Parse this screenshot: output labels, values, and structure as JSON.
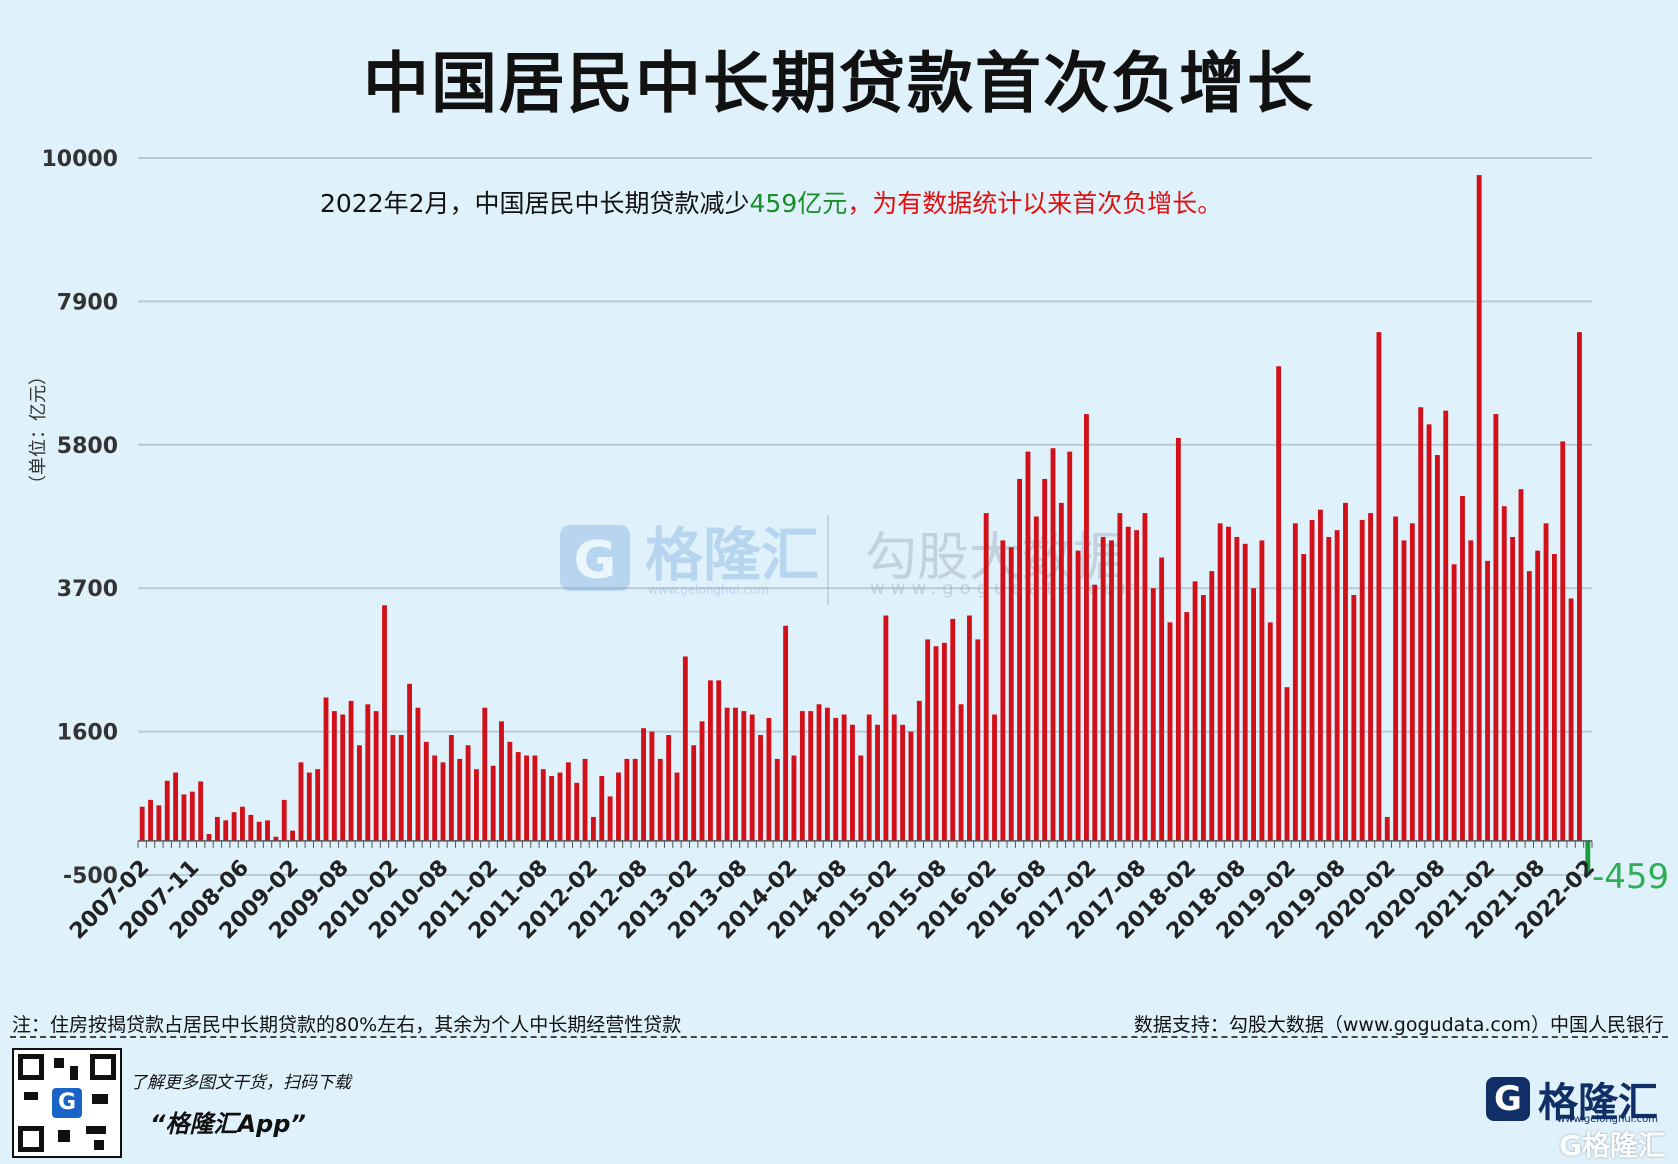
{
  "title": "中国居民中长期贷款首次负增长",
  "chart_data": {
    "type": "bar",
    "ylabel": "（单位：亿元）",
    "yticks": [
      -500,
      1600,
      3700,
      5800,
      7900,
      10000
    ],
    "ylim": [
      -500,
      10000
    ],
    "bar_color": "#d1101a",
    "negative_color": "#1a9c3c",
    "xtick_labels": [
      "2007-02",
      "2007-11",
      "2008-06",
      "2009-02",
      "2009-08",
      "2010-02",
      "2010-08",
      "2011-02",
      "2011-08",
      "2012-02",
      "2012-08",
      "2013-02",
      "2013-08",
      "2014-02",
      "2014-08",
      "2015-02",
      "2015-08",
      "2016-02",
      "2016-08",
      "2017-02",
      "2017-08",
      "2018-02",
      "2018-08",
      "2019-02",
      "2019-08",
      "2020-02",
      "2020-08",
      "2021-02",
      "2021-08",
      "2022-02"
    ],
    "annotation": {
      "part1": "2022年2月，中国居民中长期贷款减少",
      "part2": "459亿元",
      "part3": "，为有数据统计以来首次负增长。"
    },
    "last_value_label": "-459",
    "values": [
      500,
      600,
      520,
      880,
      1000,
      680,
      720,
      870,
      100,
      350,
      300,
      420,
      500,
      380,
      280,
      300,
      60,
      600,
      150,
      1150,
      1000,
      1050,
      2100,
      1900,
      1850,
      2050,
      1400,
      2000,
      1900,
      3450,
      1550,
      1550,
      2300,
      1950,
      1450,
      1250,
      1150,
      1550,
      1200,
      1400,
      1050,
      1950,
      1100,
      1750,
      1450,
      1300,
      1250,
      1250,
      1050,
      950,
      1000,
      1150,
      850,
      1200,
      350,
      950,
      650,
      1000,
      1200,
      1200,
      1650,
      1600,
      1200,
      1550,
      1000,
      2700,
      1400,
      1750,
      2350,
      2350,
      1950,
      1950,
      1900,
      1850,
      1550,
      1800,
      1200,
      3150,
      1250,
      1900,
      1900,
      2000,
      1950,
      1800,
      1850,
      1700,
      1250,
      1850,
      1700,
      3300,
      1850,
      1700,
      1600,
      2050,
      2950,
      2850,
      2900,
      3250,
      2000,
      3300,
      2950,
      4800,
      1850,
      4400,
      4300,
      5300,
      5700,
      4750,
      5300,
      5750,
      4950,
      5700,
      4250,
      6250,
      3750,
      4450,
      4400,
      4800,
      4600,
      4550,
      4800,
      3700,
      4150,
      3200,
      5900,
      3350,
      3800,
      3600,
      3950,
      4650,
      4600,
      4450,
      4350,
      3700,
      4400,
      3200,
      6950,
      2250,
      4650,
      4200,
      4700,
      4850,
      4450,
      4550,
      4950,
      3600,
      4700,
      4800,
      7450,
      350,
      4750,
      4400,
      4650,
      6350,
      6100,
      5650,
      6300,
      4050,
      5050,
      4400,
      9750,
      4100,
      6250,
      4900,
      4450,
      5150,
      3950,
      4250,
      4650,
      4200,
      5850,
      3550,
      7450,
      -459
    ]
  },
  "footer": {
    "note_left": "注：住房按揭贷款占居民中长期贷款的80%左右，其余为个人中长期经营性贷款",
    "note_right": "数据支持：勾股大数据（www.gogudata.com）中国人民银行",
    "promo1": "了解更多图文干货，扫码下载",
    "promo2": "“格隆汇App”",
    "brand": "格隆汇",
    "brand_url": "www.gelonghui.com",
    "brand2": "G格隆汇"
  },
  "watermark": {
    "a": "格隆汇",
    "a_url": "www.gelonghui.com",
    "b": "勾股大数据",
    "b_url": "www.gogudata.com"
  }
}
